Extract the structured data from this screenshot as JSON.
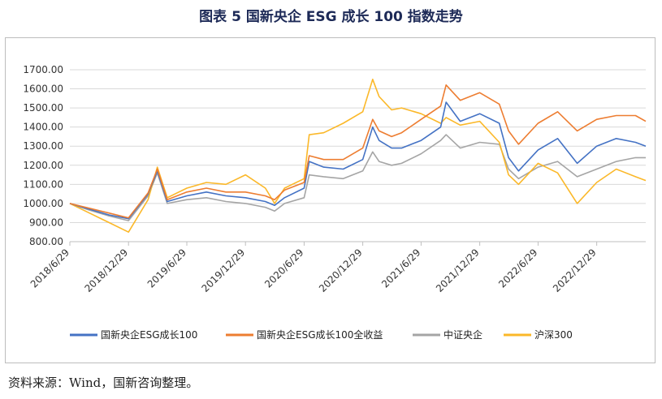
{
  "title": "图表 5 国新央企 ESG 成长 100 指数走势",
  "source": "资料来源：Wind，国新咨询整理。",
  "chart_data": {
    "type": "line",
    "ylim": [
      800,
      1700
    ],
    "yticks": [
      800,
      900,
      1000,
      1100,
      1200,
      1300,
      1400,
      1500,
      1600,
      1700
    ],
    "ytick_labels": [
      "800.00",
      "900.00",
      "1000.00",
      "1100.00",
      "1200.00",
      "1300.00",
      "1400.00",
      "1500.00",
      "1600.00",
      "1700.00"
    ],
    "x_labels": [
      "2018/6/29",
      "2018/12/29",
      "2019/6/29",
      "2019/12/29",
      "2020/6/29",
      "2020/12/29",
      "2021/6/29",
      "2021/12/29",
      "2022/6/29",
      "2022/12/29"
    ],
    "x": [
      "2018/6/29",
      "2018/8/29",
      "2018/10/29",
      "2018/12/29",
      "2019/2/28",
      "2019/3/29",
      "2019/4/29",
      "2019/6/29",
      "2019/8/29",
      "2019/10/29",
      "2019/12/29",
      "2020/2/29",
      "2020/3/29",
      "2020/4/29",
      "2020/6/29",
      "2020/7/15",
      "2020/8/29",
      "2020/10/29",
      "2020/12/29",
      "2021/1/29",
      "2021/2/18",
      "2021/3/29",
      "2021/4/29",
      "2021/6/29",
      "2021/8/29",
      "2021/9/15",
      "2021/10/29",
      "2021/12/29",
      "2022/2/28",
      "2022/3/29",
      "2022/4/29",
      "2022/6/29",
      "2022/8/29",
      "2022/10/29",
      "2022/12/29",
      "2023/2/28",
      "2023/4/29",
      "2023/5/31"
    ],
    "grid": true,
    "legend_position": "bottom",
    "series": [
      {
        "name": "国新央企ESG成长100",
        "color": "#4472c4",
        "values": [
          1000,
          970,
          940,
          920,
          1050,
          1170,
          1010,
          1040,
          1060,
          1040,
          1030,
          1010,
          990,
          1030,
          1080,
          1220,
          1190,
          1180,
          1230,
          1400,
          1330,
          1290,
          1290,
          1330,
          1400,
          1530,
          1430,
          1470,
          1420,
          1240,
          1170,
          1280,
          1340,
          1210,
          1300,
          1340,
          1320,
          1300
        ]
      },
      {
        "name": "国新央企ESG成长100全收益",
        "color": "#ed7d31",
        "values": [
          1000,
          975,
          950,
          925,
          1055,
          1180,
          1020,
          1060,
          1080,
          1060,
          1060,
          1040,
          1020,
          1070,
          1110,
          1250,
          1230,
          1230,
          1290,
          1440,
          1380,
          1350,
          1370,
          1440,
          1510,
          1620,
          1540,
          1580,
          1520,
          1380,
          1310,
          1420,
          1480,
          1380,
          1440,
          1460,
          1460,
          1430
        ]
      },
      {
        "name": "中证央企",
        "color": "#a5a5a5",
        "values": [
          1000,
          965,
          935,
          910,
          1040,
          1160,
          1000,
          1020,
          1030,
          1010,
          1000,
          980,
          960,
          1000,
          1030,
          1150,
          1140,
          1130,
          1170,
          1270,
          1220,
          1200,
          1210,
          1260,
          1330,
          1360,
          1290,
          1320,
          1310,
          1180,
          1130,
          1190,
          1220,
          1140,
          1180,
          1220,
          1240,
          1240
        ]
      },
      {
        "name": "沪深300",
        "color": "#fbb829",
        "values": [
          1000,
          950,
          900,
          850,
          1020,
          1190,
          1030,
          1080,
          1110,
          1100,
          1150,
          1080,
          1000,
          1080,
          1130,
          1360,
          1370,
          1420,
          1480,
          1650,
          1560,
          1490,
          1500,
          1470,
          1420,
          1450,
          1410,
          1430,
          1320,
          1150,
          1100,
          1210,
          1160,
          1000,
          1110,
          1180,
          1140,
          1120
        ]
      }
    ]
  }
}
